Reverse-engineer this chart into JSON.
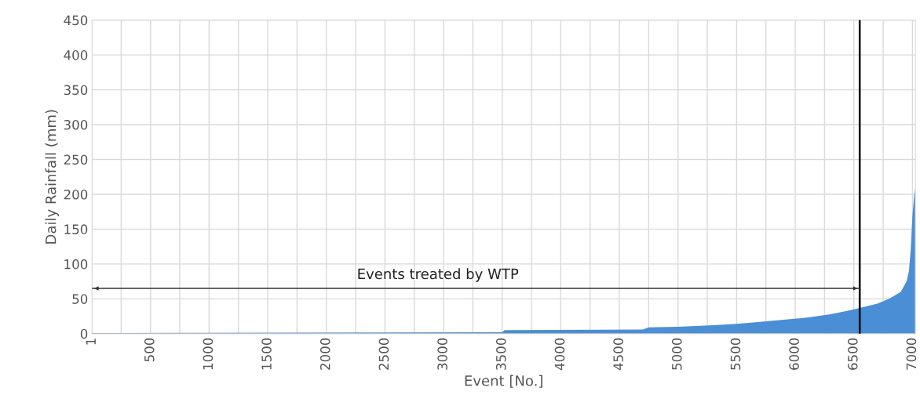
{
  "chart_data": {
    "type": "area",
    "xlabel": "Event [No.]",
    "ylabel": "Daily Rainfall (mm)",
    "x": [
      1,
      3500,
      3520,
      4700,
      4750,
      5000,
      5300,
      5500,
      5700,
      5900,
      6100,
      6300,
      6450,
      6550,
      6700,
      6800,
      6900,
      6950,
      6970,
      6985,
      7000,
      7015,
      7025
    ],
    "series": [
      {
        "color": "#4a8fd6",
        "values": [
          1,
          2,
          5,
          6,
          9,
          10,
          12,
          14,
          17,
          20,
          23,
          28,
          33,
          37,
          43,
          50,
          60,
          75,
          90,
          120,
          170,
          200,
          210
        ]
      },
      {
        "type": "line",
        "color": "#333333",
        "x": [
          1,
          6550
        ],
        "values": [
          65,
          65
        ]
      }
    ],
    "xlim": [
      1,
      7025
    ],
    "xticks": [
      1,
      {
        "value": 250,
        "label": null
      },
      500,
      {
        "value": 750,
        "label": null
      },
      1000,
      {
        "value": 1250,
        "label": null
      },
      1500,
      {
        "value": 1750,
        "label": null
      },
      2000,
      {
        "value": 2250,
        "label": null
      },
      2500,
      {
        "value": 2750,
        "label": null
      },
      3000,
      {
        "value": 3250,
        "label": null
      },
      3500,
      {
        "value": 3750,
        "label": null
      },
      4000,
      {
        "value": 4250,
        "label": null
      },
      4500,
      {
        "value": 4750,
        "label": null
      },
      5000,
      {
        "value": 5250,
        "label": null
      },
      5500,
      {
        "value": 5750,
        "label": null
      },
      6000,
      {
        "value": 6250,
        "label": null
      },
      6500,
      {
        "value": 6750,
        "label": null
      },
      7000
    ],
    "ylim": [
      0,
      450
    ],
    "yticks": [
      0,
      50,
      100,
      150,
      200,
      250,
      300,
      350,
      400,
      450
    ],
    "grid": true,
    "ref_lines": [
      {
        "axis": "x",
        "value": 6550,
        "color": "#000000"
      }
    ],
    "annotations": [
      "Events treated by WTP"
    ]
  }
}
